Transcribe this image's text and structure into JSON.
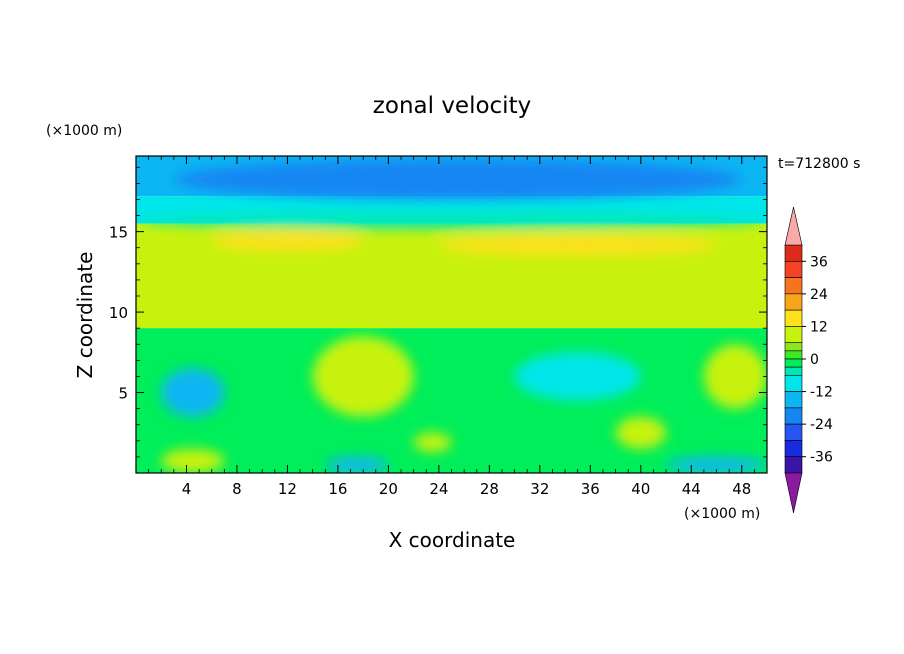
{
  "chart_data": {
    "type": "heatmap",
    "title": "zonal velocity",
    "xlabel": "X coordinate",
    "ylabel": "Z coordinate",
    "x_unit": "(×1000 m)",
    "z_unit": "(×1000 m)",
    "time_label": "t=712800 s",
    "xlim": [
      0,
      50
    ],
    "ylim": [
      0,
      19.7
    ],
    "x_ticks": [
      4,
      8,
      12,
      16,
      20,
      24,
      28,
      32,
      36,
      40,
      44,
      48
    ],
    "y_ticks": [
      5,
      10,
      15
    ],
    "colorbar": {
      "tick_labels": [
        "36",
        "24",
        "12",
        "0",
        "-12",
        "-24",
        "-36"
      ],
      "tick_values": [
        36,
        24,
        12,
        0,
        -12,
        -24,
        -36
      ],
      "min": -42,
      "max": 42,
      "levels": [
        {
          "lo": 36,
          "hi": 42,
          "color": "#dc2b1a"
        },
        {
          "lo": 30,
          "hi": 36,
          "color": "#f44224"
        },
        {
          "lo": 24,
          "hi": 30,
          "color": "#f7741f"
        },
        {
          "lo": 18,
          "hi": 24,
          "color": "#f9a51b"
        },
        {
          "lo": 12,
          "hi": 18,
          "color": "#fde11c"
        },
        {
          "lo": 6,
          "hi": 12,
          "color": "#c8f20e"
        },
        {
          "lo": 3,
          "hi": 6,
          "color": "#8de622"
        },
        {
          "lo": 0,
          "hi": 3,
          "color": "#3ee824"
        },
        {
          "lo": -3,
          "hi": 0,
          "color": "#00ee5a"
        },
        {
          "lo": -6,
          "hi": -3,
          "color": "#00e8b4"
        },
        {
          "lo": -12,
          "hi": -6,
          "color": "#00e6ea"
        },
        {
          "lo": -18,
          "hi": -12,
          "color": "#0cb6f2"
        },
        {
          "lo": -24,
          "hi": -18,
          "color": "#1686f3"
        },
        {
          "lo": -30,
          "hi": -24,
          "color": "#2456f0"
        },
        {
          "lo": -36,
          "hi": -30,
          "color": "#1a2ae0"
        },
        {
          "lo": -42,
          "hi": -36,
          "color": "#3a14a8"
        }
      ],
      "over_color": "#f8aaa8",
      "under_color": "#8c1aa0"
    },
    "field_layers": [
      {
        "z_range": [
          17.2,
          19.7
        ],
        "value": -13,
        "note_color": "#0cb6f2"
      },
      {
        "z_range": [
          15.5,
          17.2
        ],
        "value": -8,
        "note_color": "#00e6ea"
      },
      {
        "z_range": [
          9.0,
          15.5
        ],
        "value": 8,
        "note_color": "#c8f20e"
      },
      {
        "z_range": [
          0,
          9.0
        ],
        "value": -2,
        "note_color": "#00ee5a"
      }
    ],
    "features": [
      {
        "x_range": [
          3,
          48
        ],
        "z_range": [
          17.0,
          19.5
        ],
        "value": -20
      },
      {
        "x_range": [
          0,
          50
        ],
        "z_range": [
          15.2,
          16.2
        ],
        "value": -4
      },
      {
        "x_range": [
          6,
          18
        ],
        "z_range": [
          13.8,
          15.0
        ],
        "value": 14
      },
      {
        "x_range": [
          24,
          46
        ],
        "z_range": [
          13.5,
          14.8
        ],
        "value": 13
      },
      {
        "x_range": [
          14,
          22
        ],
        "z_range": [
          3.5,
          8.5
        ],
        "value": 9
      },
      {
        "x_range": [
          45,
          50
        ],
        "z_range": [
          4.0,
          8.0
        ],
        "value": 9
      },
      {
        "x_range": [
          2,
          7
        ],
        "z_range": [
          3.5,
          6.5
        ],
        "value": -13
      },
      {
        "x_range": [
          30,
          40
        ],
        "z_range": [
          4.5,
          7.5
        ],
        "value": -10
      },
      {
        "x_range": [
          38,
          42
        ],
        "z_range": [
          1.5,
          3.5
        ],
        "value": 8
      },
      {
        "x_range": [
          15,
          20
        ],
        "z_range": [
          0,
          1.0
        ],
        "value": -15
      },
      {
        "x_range": [
          42,
          50
        ],
        "z_range": [
          0,
          1.0
        ],
        "value": -14
      },
      {
        "x_range": [
          2,
          7
        ],
        "z_range": [
          0,
          1.5
        ],
        "value": 10
      },
      {
        "x_range": [
          22,
          25
        ],
        "z_range": [
          1.3,
          2.5
        ],
        "value": 10
      }
    ]
  }
}
